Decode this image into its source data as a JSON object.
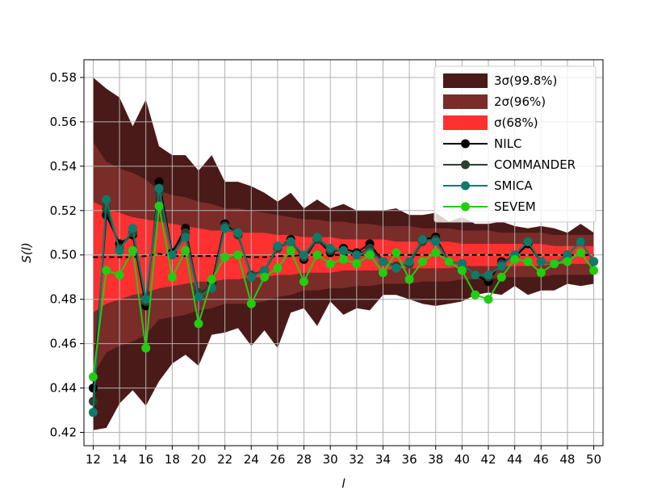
{
  "chart_data": {
    "type": "line",
    "xlabel": "l",
    "ylabel": "S(l)",
    "xlim": [
      11.3,
      50.7
    ],
    "ylim": [
      0.414,
      0.588
    ],
    "xticks": [
      12,
      14,
      16,
      18,
      20,
      22,
      24,
      26,
      28,
      30,
      32,
      34,
      36,
      38,
      40,
      42,
      44,
      46,
      48,
      50
    ],
    "yticks": [
      0.42,
      0.44,
      0.46,
      0.48,
      0.5,
      0.52,
      0.54,
      0.56,
      0.58
    ],
    "ytick_labels": [
      "0.42",
      "0.44",
      "0.46",
      "0.48",
      "0.50",
      "0.52",
      "0.54",
      "0.56",
      "0.58"
    ],
    "grid": true,
    "legend_position": "top-right",
    "x": [
      12,
      13,
      14,
      15,
      16,
      17,
      18,
      19,
      20,
      21,
      22,
      23,
      24,
      25,
      26,
      27,
      28,
      29,
      30,
      31,
      32,
      33,
      34,
      35,
      36,
      37,
      38,
      39,
      40,
      41,
      42,
      43,
      44,
      45,
      46,
      47,
      48,
      49,
      50
    ],
    "mean": [
      0.499,
      0.499,
      0.499,
      0.499,
      0.4995,
      0.5005,
      0.4995,
      0.4995,
      0.4995,
      0.4995,
      0.4995,
      0.4995,
      0.499,
      0.499,
      0.4995,
      0.4995,
      0.5,
      0.5,
      0.5,
      0.5,
      0.5,
      0.5,
      0.5,
      0.5,
      0.5,
      0.5,
      0.5,
      0.5,
      0.5,
      0.5,
      0.5,
      0.5,
      0.5,
      0.5,
      0.5,
      0.5,
      0.5,
      0.5,
      0.5
    ],
    "bands": [
      {
        "label": "3σ(99.8%)",
        "color": "#4a1a18",
        "upper": [
          0.58,
          0.575,
          0.571,
          0.558,
          0.57,
          0.549,
          0.545,
          0.545,
          0.538,
          0.545,
          0.533,
          0.533,
          0.531,
          0.528,
          0.524,
          0.528,
          0.521,
          0.525,
          0.521,
          0.523,
          0.52,
          0.52,
          0.52,
          0.521,
          0.518,
          0.518,
          0.519,
          0.515,
          0.517,
          0.514,
          0.514,
          0.515,
          0.513,
          0.512,
          0.513,
          0.512,
          0.51,
          0.514,
          0.51
        ],
        "lower": [
          0.421,
          0.422,
          0.433,
          0.439,
          0.432,
          0.443,
          0.451,
          0.455,
          0.45,
          0.464,
          0.465,
          0.467,
          0.459,
          0.466,
          0.458,
          0.474,
          0.476,
          0.468,
          0.479,
          0.473,
          0.476,
          0.475,
          0.482,
          0.482,
          0.48,
          0.478,
          0.477,
          0.478,
          0.479,
          0.482,
          0.483,
          0.482,
          0.486,
          0.482,
          0.484,
          0.484,
          0.487,
          0.486,
          0.487
        ]
      },
      {
        "label": "2σ(96%)",
        "color": "#7a2c28",
        "upper": [
          0.551,
          0.542,
          0.539,
          0.537,
          0.534,
          0.529,
          0.527,
          0.526,
          0.524,
          0.523,
          0.521,
          0.521,
          0.52,
          0.519,
          0.518,
          0.517,
          0.516,
          0.516,
          0.515,
          0.515,
          0.514,
          0.514,
          0.513,
          0.513,
          0.513,
          0.512,
          0.512,
          0.512,
          0.511,
          0.511,
          0.511,
          0.51,
          0.51,
          0.51,
          0.51,
          0.509,
          0.509,
          0.509,
          0.509
        ],
        "lower": [
          0.446,
          0.456,
          0.459,
          0.461,
          0.464,
          0.471,
          0.472,
          0.473,
          0.475,
          0.476,
          0.478,
          0.478,
          0.478,
          0.479,
          0.481,
          0.482,
          0.484,
          0.484,
          0.485,
          0.485,
          0.486,
          0.486,
          0.487,
          0.487,
          0.487,
          0.488,
          0.488,
          0.488,
          0.489,
          0.489,
          0.489,
          0.49,
          0.49,
          0.49,
          0.49,
          0.491,
          0.491,
          0.491,
          0.491
        ]
      },
      {
        "label": "σ(68%)",
        "color": "#ff3030",
        "upper": [
          0.524,
          0.521,
          0.519,
          0.517,
          0.516,
          0.515,
          0.514,
          0.513,
          0.512,
          0.511,
          0.511,
          0.51,
          0.51,
          0.51,
          0.509,
          0.509,
          0.508,
          0.508,
          0.508,
          0.507,
          0.507,
          0.507,
          0.507,
          0.506,
          0.506,
          0.506,
          0.506,
          0.506,
          0.505,
          0.505,
          0.505,
          0.505,
          0.505,
          0.505,
          0.505,
          0.504,
          0.504,
          0.504,
          0.504
        ],
        "lower": [
          0.474,
          0.478,
          0.48,
          0.482,
          0.483,
          0.485,
          0.486,
          0.487,
          0.488,
          0.488,
          0.489,
          0.489,
          0.49,
          0.49,
          0.491,
          0.491,
          0.492,
          0.492,
          0.492,
          0.493,
          0.493,
          0.493,
          0.493,
          0.494,
          0.494,
          0.494,
          0.494,
          0.494,
          0.495,
          0.495,
          0.495,
          0.495,
          0.495,
          0.495,
          0.495,
          0.496,
          0.496,
          0.496,
          0.496
        ]
      }
    ],
    "series": [
      {
        "name": "NILC",
        "color": "#000000",
        "values": [
          0.44,
          0.518,
          0.505,
          0.509,
          0.477,
          0.533,
          0.501,
          0.512,
          0.482,
          0.487,
          0.514,
          0.509,
          0.491,
          0.493,
          0.503,
          0.507,
          0.498,
          0.507,
          0.501,
          0.503,
          0.501,
          0.505,
          0.497,
          0.495,
          0.496,
          0.507,
          0.508,
          0.497,
          0.496,
          0.491,
          0.488,
          0.497,
          0.499,
          0.505,
          0.497,
          0.496,
          0.5,
          0.506,
          0.497
        ]
      },
      {
        "name": "COMMANDER",
        "color": "#2f4030",
        "values": [
          0.434,
          0.521,
          0.503,
          0.51,
          0.479,
          0.528,
          0.5,
          0.51,
          0.483,
          0.486,
          0.513,
          0.509,
          0.491,
          0.493,
          0.503,
          0.506,
          0.499,
          0.507,
          0.502,
          0.502,
          0.5,
          0.503,
          0.497,
          0.495,
          0.496,
          0.506,
          0.507,
          0.497,
          0.496,
          0.491,
          0.49,
          0.496,
          0.5,
          0.506,
          0.497,
          0.496,
          0.5,
          0.506,
          0.497
        ]
      },
      {
        "name": "SMICA",
        "color": "#0d7a6a",
        "values": [
          0.429,
          0.525,
          0.502,
          0.512,
          0.48,
          0.53,
          0.5,
          0.508,
          0.481,
          0.485,
          0.512,
          0.51,
          0.49,
          0.493,
          0.504,
          0.506,
          0.5,
          0.508,
          0.503,
          0.502,
          0.5,
          0.501,
          0.497,
          0.494,
          0.497,
          0.507,
          0.506,
          0.497,
          0.496,
          0.491,
          0.491,
          0.495,
          0.5,
          0.506,
          0.497,
          0.496,
          0.5,
          0.506,
          0.497
        ]
      },
      {
        "name": "SEVEM",
        "color": "#22cc11",
        "values": [
          0.445,
          0.493,
          0.491,
          0.502,
          0.458,
          0.522,
          0.49,
          0.502,
          0.469,
          0.489,
          0.499,
          0.5,
          0.478,
          0.49,
          0.494,
          0.502,
          0.488,
          0.5,
          0.496,
          0.498,
          0.496,
          0.5,
          0.492,
          0.501,
          0.489,
          0.497,
          0.501,
          0.497,
          0.493,
          0.482,
          0.48,
          0.49,
          0.498,
          0.497,
          0.492,
          0.496,
          0.497,
          0.501,
          0.493
        ]
      }
    ]
  }
}
